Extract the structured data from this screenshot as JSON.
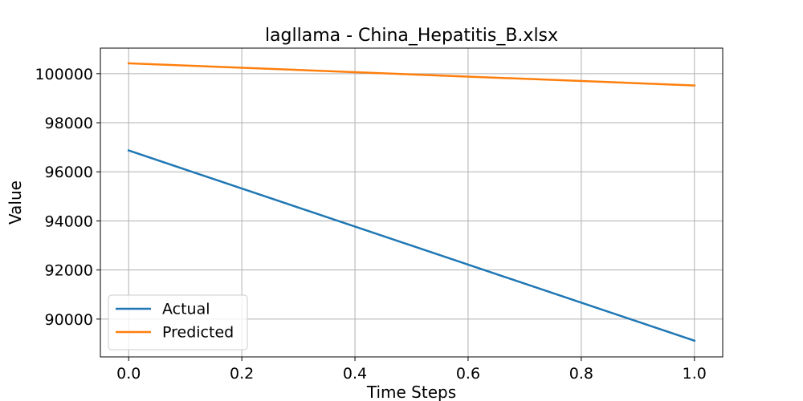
{
  "chart_data": {
    "type": "line",
    "title": "lagllama - China_Hepatitis_B.xlsx",
    "xlabel": "Time Steps",
    "ylabel": "Value",
    "x": [
      0.0,
      1.0
    ],
    "xlim": [
      -0.05,
      1.05
    ],
    "ylim": [
      88460,
      101040
    ],
    "xticks": [
      0.0,
      0.2,
      0.4,
      0.6,
      0.8,
      1.0
    ],
    "xtick_labels": [
      "0.0",
      "0.2",
      "0.4",
      "0.6",
      "0.8",
      "1.0"
    ],
    "yticks": [
      90000,
      92000,
      94000,
      96000,
      98000,
      100000
    ],
    "ytick_labels": [
      "90000",
      "92000",
      "94000",
      "96000",
      "98000",
      "100000"
    ],
    "grid": true,
    "legend_position": "lower-left",
    "series": [
      {
        "name": "Actual",
        "color": "#1f77b4",
        "values": [
          96870,
          89120
        ]
      },
      {
        "name": "Predicted",
        "color": "#ff7f0e",
        "values": [
          100420,
          99520
        ]
      }
    ]
  }
}
